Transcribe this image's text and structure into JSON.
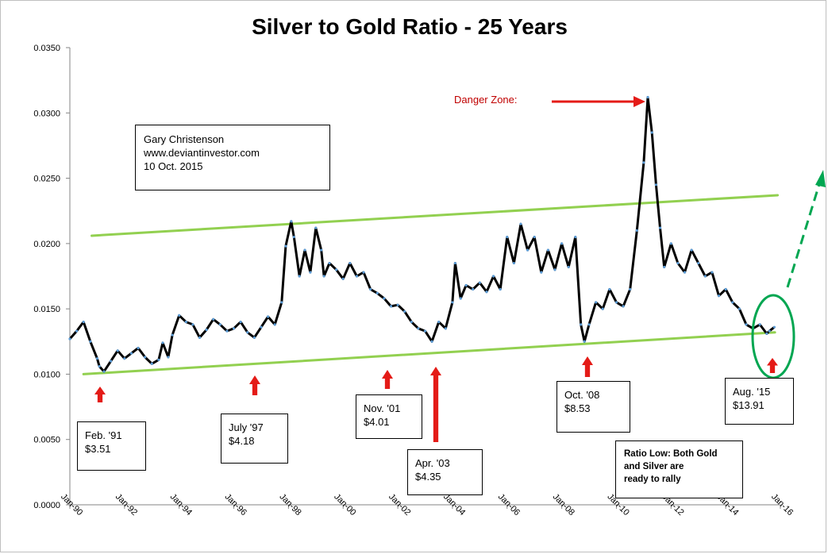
{
  "chart_data": {
    "type": "line",
    "title": "Silver to Gold Ratio - 25 Years",
    "y_ticks": [
      "0.0000",
      "0.0050",
      "0.0100",
      "0.0150",
      "0.0200",
      "0.0250",
      "0.0300",
      "0.0350"
    ],
    "x_ticks": [
      "Jan-90",
      "Jan-92",
      "Jan-94",
      "Jan-96",
      "Jan-98",
      "Jan-00",
      "Jan-02",
      "Jan-04",
      "Jan-06",
      "Jan-08",
      "Jan-10",
      "Jan-12",
      "Jan-14",
      "Jan-16"
    ],
    "ylim": [
      0,
      0.035
    ],
    "xlim": [
      1990.0,
      2016.0
    ],
    "grid": false,
    "legend": "none",
    "series": [
      {
        "color": "#000000",
        "marker_color": "#5b9bd5",
        "x": [
          1990.0,
          1990.25,
          1990.5,
          1990.75,
          1991.0,
          1991.08,
          1991.25,
          1991.5,
          1991.75,
          1992.0,
          1992.25,
          1992.5,
          1992.75,
          1993.0,
          1993.25,
          1993.4,
          1993.6,
          1993.75,
          1994.0,
          1994.25,
          1994.5,
          1994.75,
          1995.0,
          1995.25,
          1995.5,
          1995.75,
          1996.0,
          1996.25,
          1996.5,
          1996.75,
          1997.0,
          1997.25,
          1997.5,
          1997.75,
          1997.9,
          1998.1,
          1998.2,
          1998.4,
          1998.6,
          1998.8,
          1999.0,
          1999.2,
          1999.3,
          1999.5,
          1999.75,
          2000.0,
          2000.25,
          2000.5,
          2000.75,
          2001.0,
          2001.25,
          2001.5,
          2001.75,
          2002.0,
          2002.25,
          2002.5,
          2002.75,
          2003.0,
          2003.25,
          2003.5,
          2003.75,
          2004.0,
          2004.1,
          2004.3,
          2004.5,
          2004.75,
          2005.0,
          2005.25,
          2005.5,
          2005.75,
          2006.0,
          2006.25,
          2006.5,
          2006.75,
          2007.0,
          2007.25,
          2007.5,
          2007.75,
          2008.0,
          2008.25,
          2008.5,
          2008.7,
          2008.83,
          2009.0,
          2009.25,
          2009.5,
          2009.75,
          2010.0,
          2010.25,
          2010.5,
          2010.75,
          2011.0,
          2011.15,
          2011.3,
          2011.45,
          2011.6,
          2011.75,
          2012.0,
          2012.25,
          2012.5,
          2012.75,
          2013.0,
          2013.25,
          2013.5,
          2013.75,
          2014.0,
          2014.25,
          2014.5,
          2014.75,
          2015.0,
          2015.25,
          2015.5,
          2015.6,
          2015.78
        ],
        "y": [
          0.0127,
          0.0133,
          0.014,
          0.0125,
          0.0112,
          0.0106,
          0.0102,
          0.011,
          0.0118,
          0.0112,
          0.0116,
          0.012,
          0.0113,
          0.0108,
          0.0111,
          0.0124,
          0.0113,
          0.013,
          0.0145,
          0.014,
          0.0138,
          0.0128,
          0.0134,
          0.0142,
          0.0138,
          0.0133,
          0.0135,
          0.014,
          0.0132,
          0.0128,
          0.0136,
          0.0144,
          0.0138,
          0.0155,
          0.0198,
          0.0217,
          0.0205,
          0.0175,
          0.0195,
          0.0178,
          0.0212,
          0.0195,
          0.0175,
          0.0185,
          0.018,
          0.0173,
          0.0185,
          0.0175,
          0.0178,
          0.0165,
          0.0162,
          0.0158,
          0.0152,
          0.0153,
          0.0148,
          0.014,
          0.0135,
          0.0133,
          0.0125,
          0.014,
          0.0135,
          0.0155,
          0.0185,
          0.0158,
          0.0168,
          0.0165,
          0.017,
          0.0163,
          0.0175,
          0.0165,
          0.0205,
          0.0185,
          0.0215,
          0.0195,
          0.0205,
          0.0178,
          0.0195,
          0.018,
          0.02,
          0.0182,
          0.0205,
          0.0138,
          0.0125,
          0.0138,
          0.0155,
          0.015,
          0.0165,
          0.0155,
          0.0152,
          0.0165,
          0.021,
          0.0262,
          0.0312,
          0.0285,
          0.0245,
          0.0212,
          0.0182,
          0.02,
          0.0185,
          0.0178,
          0.0195,
          0.0185,
          0.0175,
          0.0178,
          0.016,
          0.0165,
          0.0155,
          0.015,
          0.0138,
          0.0135,
          0.0138,
          0.0131,
          0.0133,
          0.0136
        ]
      }
    ],
    "lines": [
      {
        "name": "upper-channel-line",
        "color": "#92d050",
        "x": [
          1990.8,
          2015.9
        ],
        "y": [
          0.0206,
          0.0237
        ]
      },
      {
        "name": "lower-channel-line",
        "color": "#92d050",
        "x": [
          1990.5,
          2015.8
        ],
        "y": [
          0.01,
          0.0132
        ]
      }
    ],
    "annotations": [
      {
        "name": "feb-91",
        "lines": [
          "Feb. '91",
          "$3.51"
        ],
        "point": [
          1991.08,
          0.0102
        ]
      },
      {
        "name": "july-97",
        "lines": [
          "July '97",
          "$4.18"
        ],
        "point": [
          1997.5,
          0.0138
        ]
      },
      {
        "name": "nov-01",
        "lines": [
          "Nov. '01",
          "$4.01"
        ],
        "point": [
          2001.83,
          0.0152
        ]
      },
      {
        "name": "apr-03",
        "lines": [
          "Apr. '03",
          "$4.35"
        ],
        "point": [
          2003.25,
          0.0125
        ]
      },
      {
        "name": "oct-08",
        "lines": [
          "Oct. '08",
          "$8.53"
        ],
        "point": [
          2008.83,
          0.0125
        ]
      },
      {
        "name": "aug-15",
        "lines": [
          "Aug. '15",
          "$13.91"
        ],
        "point": [
          2015.6,
          0.0131
        ]
      }
    ],
    "author_note": [
      "Gary Christenson",
      "www.deviantinvestor.com",
      "10 Oct. 2015"
    ],
    "danger_label": "Danger Zone:",
    "ratio_note": [
      "Ratio Low: Both Gold",
      "and Silver  are",
      "ready to rally"
    ]
  }
}
